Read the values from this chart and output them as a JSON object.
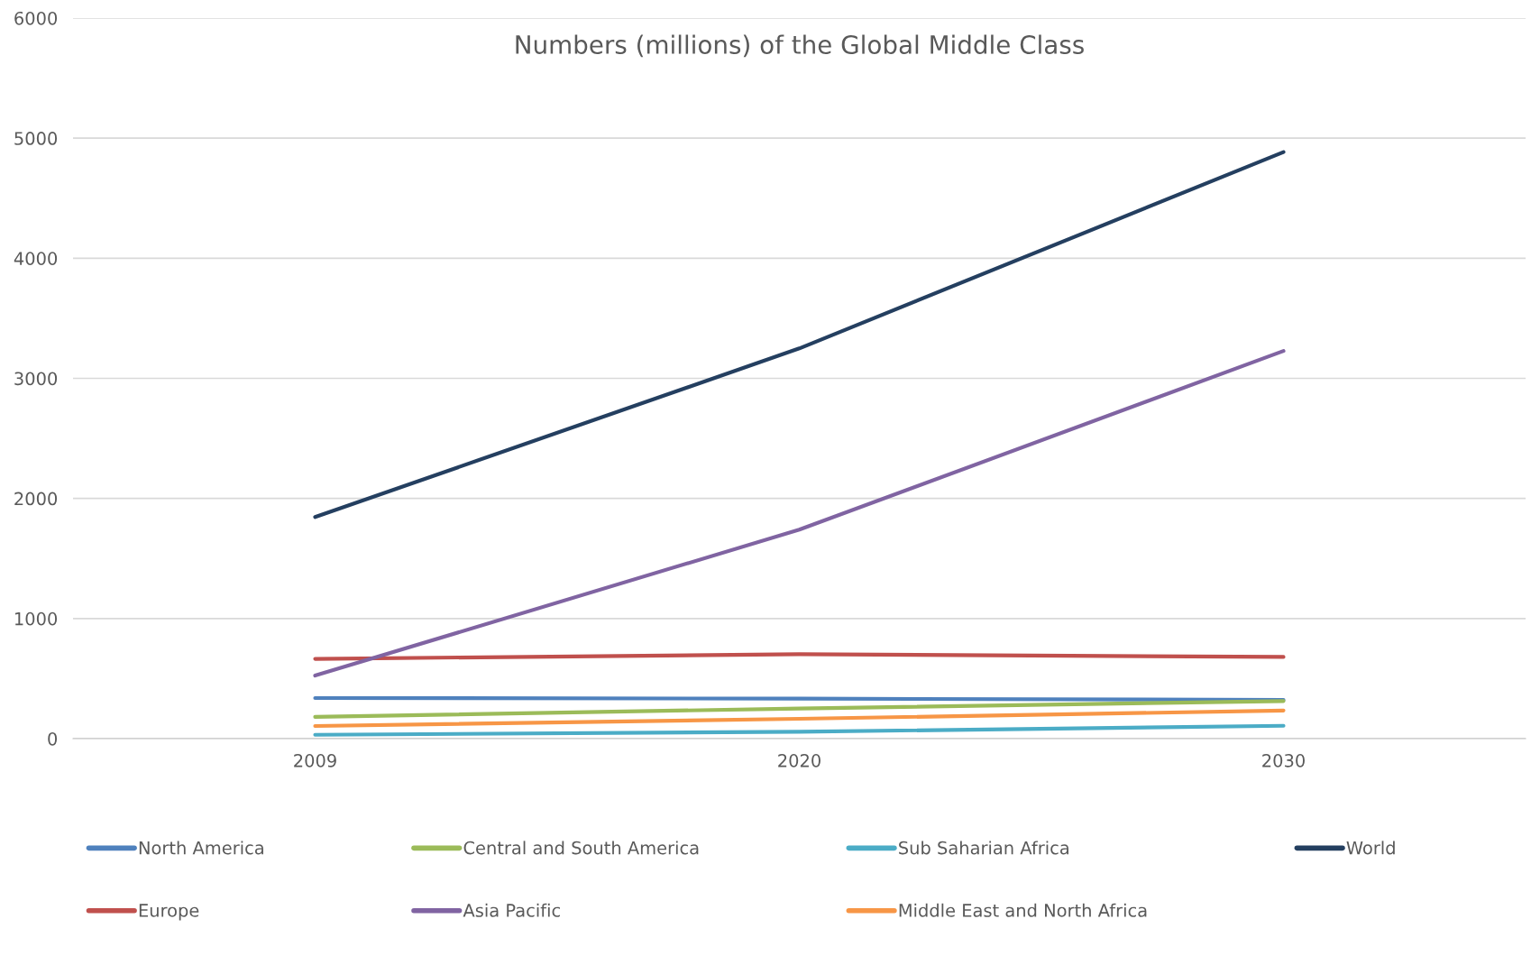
{
  "chart_data": {
    "type": "line",
    "title": "Numbers (millions) of the Global Middle Class",
    "categories": [
      "2009",
      "2020",
      "2030"
    ],
    "series": [
      {
        "name": "North America",
        "color": "#4f81bd",
        "values": [
          338,
          333,
          322
        ]
      },
      {
        "name": "Europe",
        "color": "#c0504d",
        "values": [
          664,
          703,
          680
        ]
      },
      {
        "name": "Central and South America",
        "color": "#9bbb59",
        "values": [
          181,
          251,
          313
        ]
      },
      {
        "name": "Asia Pacific",
        "color": "#8064a2",
        "values": [
          525,
          1740,
          3228
        ]
      },
      {
        "name": "Sub Saharian Africa",
        "color": "#4bacc6",
        "values": [
          32,
          57,
          107
        ]
      },
      {
        "name": "Middle East and North Africa",
        "color": "#f79646",
        "values": [
          105,
          165,
          234
        ]
      },
      {
        "name": "World",
        "color": "#243f60",
        "values": [
          1845,
          3249,
          4884
        ]
      }
    ],
    "ylim": [
      0,
      6000
    ],
    "yticks": [
      0,
      1000,
      2000,
      3000,
      4000,
      5000,
      6000
    ],
    "grid": "y",
    "legend": "bottom",
    "marker": "none",
    "line_style": "solid"
  }
}
